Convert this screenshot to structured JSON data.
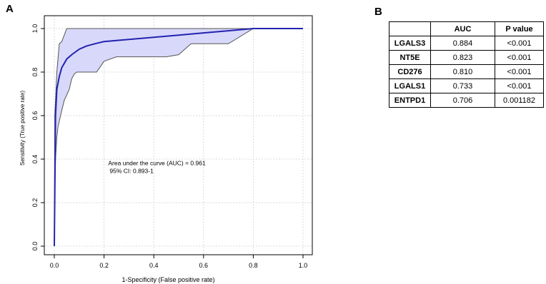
{
  "panels": {
    "a_label": "A",
    "b_label": "B"
  },
  "chart_data": {
    "type": "line",
    "xlabel": "1-Specificity (False positive rate)",
    "ylabel": "Sensitivity (True positive rate)",
    "xlim": [
      0,
      1
    ],
    "ylim": [
      0,
      1
    ],
    "x_ticks": [
      0.0,
      0.2,
      0.4,
      0.6,
      0.8,
      1.0
    ],
    "x_tick_labels": [
      "0.0",
      "0.2",
      "0.4",
      "0.6",
      "0.8",
      "1.0"
    ],
    "y_ticks": [
      0.0,
      0.2,
      0.4,
      0.6,
      0.8,
      1.0
    ],
    "y_tick_labels": [
      "0.0",
      "0.2",
      "0.4",
      "0.6",
      "0.8",
      "1.0"
    ],
    "grid": true,
    "annotation": {
      "line1": "Area under the curve (AUC) = 0.961",
      "line2": "95% CI: 0.893-1",
      "x": 0.3,
      "y": 0.5
    },
    "series": [
      {
        "role": "roc",
        "x": [
          0,
          0.005,
          0.01,
          0.02,
          0.03,
          0.05,
          0.07,
          0.1,
          0.13,
          0.17,
          0.2,
          0.3,
          0.4,
          0.5,
          0.6,
          0.7,
          0.8,
          1.0
        ],
        "y": [
          0,
          0.6,
          0.72,
          0.78,
          0.82,
          0.86,
          0.88,
          0.905,
          0.92,
          0.932,
          0.94,
          0.95,
          0.96,
          0.97,
          0.98,
          0.99,
          1.0,
          1.0
        ]
      },
      {
        "role": "ci_upper",
        "x": [
          0,
          0.002,
          0.01,
          0.02,
          0.03,
          0.04,
          0.05,
          1.0
        ],
        "y": [
          0,
          0.6,
          0.8,
          0.93,
          0.94,
          0.97,
          1.0,
          1.0
        ]
      },
      {
        "role": "ci_lower",
        "x": [
          0,
          0.002,
          0.005,
          0.01,
          0.015,
          0.025,
          0.04,
          0.06,
          0.07,
          0.08,
          0.09,
          0.12,
          0.17,
          0.2,
          0.25,
          0.45,
          0.5,
          0.55,
          0.7,
          0.8,
          1.0
        ],
        "y": [
          0,
          0.25,
          0.4,
          0.5,
          0.55,
          0.6,
          0.67,
          0.72,
          0.77,
          0.79,
          0.8,
          0.8,
          0.8,
          0.85,
          0.87,
          0.87,
          0.88,
          0.93,
          0.93,
          1.0,
          1.0
        ]
      }
    ],
    "colors": {
      "roc_line": "#2323b0",
      "ci_fill": "#d8d8fb",
      "ci_line": "#555555",
      "grid": "#d0d0d0"
    }
  },
  "table": {
    "headers": [
      "",
      "AUC",
      "P value"
    ],
    "rows": [
      [
        "LGALS3",
        "0.884",
        "<0.001"
      ],
      [
        "NT5E",
        "0.823",
        "<0.001"
      ],
      [
        "CD276",
        "0.810",
        "<0.001"
      ],
      [
        "LGALS1",
        "0.733",
        "<0.001"
      ],
      [
        "ENTPD1",
        "0.706",
        "0.001182"
      ]
    ]
  }
}
